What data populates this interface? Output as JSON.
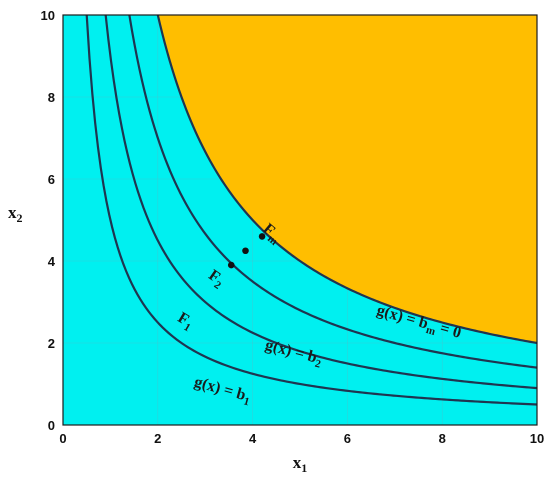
{
  "chart_data": {
    "type": "line",
    "xlim": [
      0,
      10
    ],
    "ylim": [
      0,
      10
    ],
    "x_ticks": [
      "0",
      "2",
      "4",
      "6",
      "8",
      "10"
    ],
    "y_ticks": [
      "0",
      "2",
      "4",
      "6",
      "8",
      "10"
    ],
    "xlabel": {
      "main": "x",
      "sub": "1"
    },
    "ylabel": {
      "main": "x",
      "sub": "2"
    },
    "grid": true,
    "colors": {
      "feasible_region": "#00f0f0",
      "infeasible_region": "#ffbe00",
      "curve": "#1f3550",
      "frame": "#1a1a1a"
    },
    "series": [
      {
        "family": "x1*x2 = c",
        "c": 5,
        "contour_label": {
          "main": "F",
          "sub": "1",
          "x": 2.4,
          "y": 2.55
        },
        "equation_label": {
          "pre": "g(x) = b",
          "sub": "1",
          "post": "",
          "x": 2.75,
          "y": 0.95
        }
      },
      {
        "family": "x1*x2 = c",
        "c": 9,
        "contour_label": {
          "main": "F",
          "sub": "2",
          "x": 3.05,
          "y": 3.6
        },
        "equation_label": {
          "pre": "g(x) = b",
          "sub": "2",
          "post": "",
          "x": 4.25,
          "y": 1.85
        }
      },
      {
        "family": "x1*x2 = c",
        "c": 14,
        "contour_label": null,
        "equation_label": null
      },
      {
        "family": "x1*x2 = c",
        "c": 20,
        "boundary": true,
        "contour_label": {
          "main": "F",
          "sub": "m",
          "x": 4.2,
          "y": 4.75
        },
        "equation_label": {
          "pre": "g(x) = b",
          "sub": "m",
          "post": " = 0",
          "x": 6.6,
          "y": 2.7
        }
      }
    ],
    "points": [
      {
        "x": 3.55,
        "y": 3.9
      },
      {
        "x": 3.85,
        "y": 4.25
      },
      {
        "x": 4.2,
        "y": 4.6
      }
    ]
  }
}
